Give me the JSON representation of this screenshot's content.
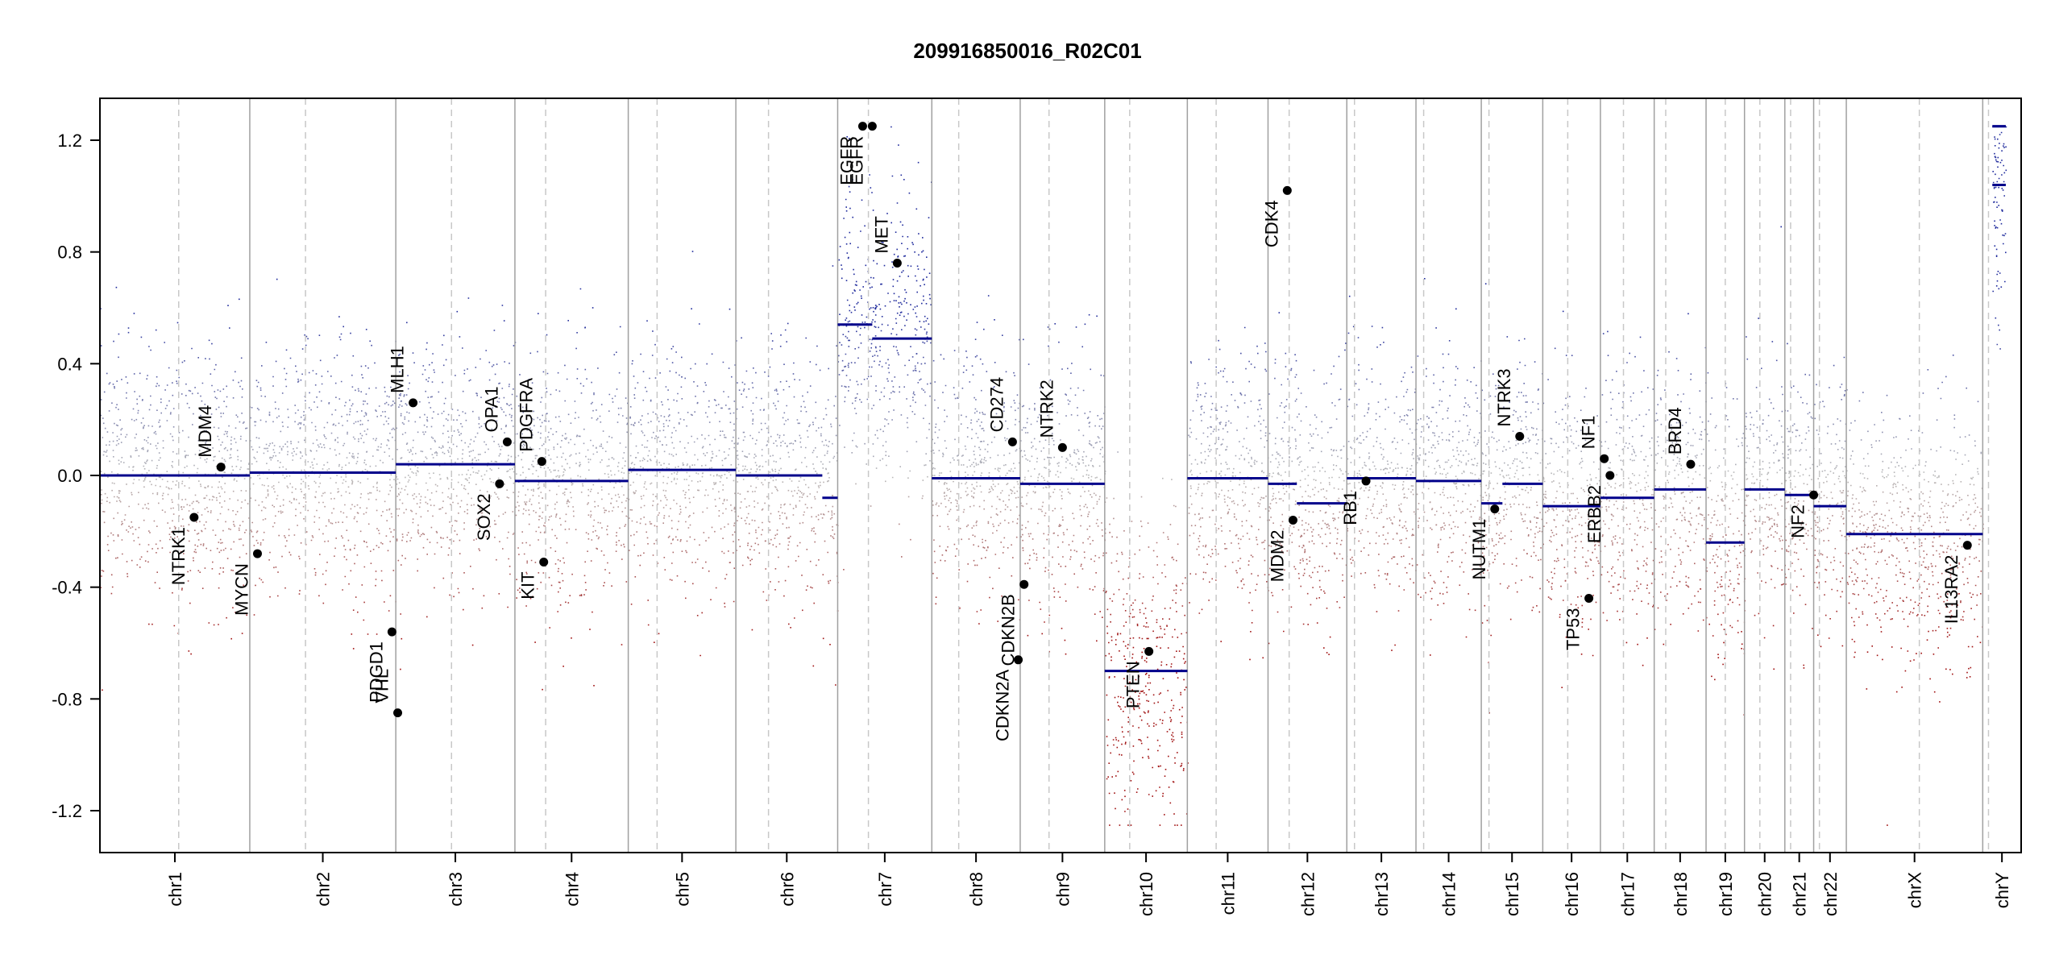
{
  "chart_data": {
    "type": "scatter",
    "title": "209916850016_R02C01",
    "xlabel": "",
    "ylabel": "",
    "ylim": [
      -1.35,
      1.35
    ],
    "yticks": [
      -1.2,
      -0.8,
      -0.4,
      0.0,
      0.4,
      0.8,
      1.2
    ],
    "ytick_labels": [
      "-1.2",
      "-0.8",
      "-0.4",
      "0.0",
      "0.4",
      "0.8",
      "1.2"
    ],
    "colors": {
      "gain": "#1f2a9c",
      "loss": "#a01010",
      "neutral": "#b9b9b9",
      "segment": "#00008b",
      "axis": "#000000",
      "boundary": "#a0a0a0",
      "centromere": "#c8c8c8"
    },
    "chromosomes": [
      {
        "name": "chr1",
        "start": 0.0,
        "end": 0.078,
        "centromere": 0.041
      },
      {
        "name": "chr2",
        "start": 0.078,
        "end": 0.154,
        "centromere": 0.107
      },
      {
        "name": "chr3",
        "start": 0.154,
        "end": 0.216,
        "centromere": 0.183
      },
      {
        "name": "chr4",
        "start": 0.216,
        "end": 0.275,
        "centromere": 0.232
      },
      {
        "name": "chr5",
        "start": 0.275,
        "end": 0.331,
        "centromere": 0.29
      },
      {
        "name": "chr6",
        "start": 0.331,
        "end": 0.384,
        "centromere": 0.348
      },
      {
        "name": "chr7",
        "start": 0.384,
        "end": 0.433,
        "centromere": 0.4
      },
      {
        "name": "chr8",
        "start": 0.433,
        "end": 0.479,
        "centromere": 0.447
      },
      {
        "name": "chr9",
        "start": 0.479,
        "end": 0.523,
        "centromere": 0.494
      },
      {
        "name": "chr10",
        "start": 0.523,
        "end": 0.566,
        "centromere": 0.536
      },
      {
        "name": "chr11",
        "start": 0.566,
        "end": 0.608,
        "centromere": 0.581
      },
      {
        "name": "chr12",
        "start": 0.608,
        "end": 0.649,
        "centromere": 0.619
      },
      {
        "name": "chr13",
        "start": 0.649,
        "end": 0.685,
        "centromere": 0.653
      },
      {
        "name": "chr14",
        "start": 0.685,
        "end": 0.719,
        "centromere": 0.689
      },
      {
        "name": "chr15",
        "start": 0.719,
        "end": 0.751,
        "centromere": 0.723
      },
      {
        "name": "chr16",
        "start": 0.751,
        "end": 0.781,
        "centromere": 0.764
      },
      {
        "name": "chr17",
        "start": 0.781,
        "end": 0.809,
        "centromere": 0.793
      },
      {
        "name": "chr18",
        "start": 0.809,
        "end": 0.836,
        "centromere": 0.815
      },
      {
        "name": "chr19",
        "start": 0.836,
        "end": 0.856,
        "centromere": 0.846
      },
      {
        "name": "chr20",
        "start": 0.856,
        "end": 0.877,
        "centromere": 0.864
      },
      {
        "name": "chr21",
        "start": 0.877,
        "end": 0.892,
        "centromere": 0.88
      },
      {
        "name": "chr22",
        "start": 0.892,
        "end": 0.909,
        "centromere": 0.895
      },
      {
        "name": "chrX",
        "start": 0.909,
        "end": 0.98,
        "centromere": 0.947
      },
      {
        "name": "chrY",
        "start": 0.98,
        "end": 1.0,
        "centromere": 0.983
      }
    ],
    "segments": [
      {
        "x0": 0.0,
        "x1": 0.078,
        "y": 0.0
      },
      {
        "x0": 0.078,
        "x1": 0.154,
        "y": 0.01
      },
      {
        "x0": 0.154,
        "x1": 0.216,
        "y": 0.04
      },
      {
        "x0": 0.216,
        "x1": 0.275,
        "y": -0.02
      },
      {
        "x0": 0.275,
        "x1": 0.331,
        "y": 0.02
      },
      {
        "x0": 0.331,
        "x1": 0.376,
        "y": 0.0
      },
      {
        "x0": 0.376,
        "x1": 0.384,
        "y": -0.08
      },
      {
        "x0": 0.384,
        "x1": 0.402,
        "y": 0.54
      },
      {
        "x0": 0.402,
        "x1": 0.433,
        "y": 0.49
      },
      {
        "x0": 0.433,
        "x1": 0.479,
        "y": -0.01
      },
      {
        "x0": 0.479,
        "x1": 0.523,
        "y": -0.03
      },
      {
        "x0": 0.523,
        "x1": 0.566,
        "y": -0.7
      },
      {
        "x0": 0.566,
        "x1": 0.608,
        "y": -0.01
      },
      {
        "x0": 0.608,
        "x1": 0.623,
        "y": -0.03
      },
      {
        "x0": 0.623,
        "x1": 0.649,
        "y": -0.1
      },
      {
        "x0": 0.649,
        "x1": 0.685,
        "y": -0.01
      },
      {
        "x0": 0.685,
        "x1": 0.719,
        "y": -0.02
      },
      {
        "x0": 0.719,
        "x1": 0.73,
        "y": -0.1
      },
      {
        "x0": 0.73,
        "x1": 0.751,
        "y": -0.03
      },
      {
        "x0": 0.751,
        "x1": 0.781,
        "y": -0.11
      },
      {
        "x0": 0.781,
        "x1": 0.809,
        "y": -0.08
      },
      {
        "x0": 0.809,
        "x1": 0.836,
        "y": -0.05
      },
      {
        "x0": 0.836,
        "x1": 0.856,
        "y": -0.24
      },
      {
        "x0": 0.856,
        "x1": 0.877,
        "y": -0.05
      },
      {
        "x0": 0.877,
        "x1": 0.892,
        "y": -0.07
      },
      {
        "x0": 0.892,
        "x1": 0.909,
        "y": -0.11
      },
      {
        "x0": 0.909,
        "x1": 0.98,
        "y": -0.21
      },
      {
        "x0": 0.985,
        "x1": 0.992,
        "y": 1.04
      },
      {
        "x0": 0.985,
        "x1": 0.992,
        "y": 1.25
      }
    ],
    "genes": [
      {
        "name": "NTRK1",
        "x": 0.049,
        "y": -0.15,
        "label_side": "below"
      },
      {
        "name": "MDM4",
        "x": 0.063,
        "y": 0.03,
        "label_side": "above"
      },
      {
        "name": "MYCN",
        "x": 0.082,
        "y": -0.28,
        "label_side": "below"
      },
      {
        "name": "PDGD1",
        "x": 0.152,
        "y": -0.56,
        "label_side": "below"
      },
      {
        "name": "VHL",
        "x": 0.155,
        "y": -0.85,
        "label_side": "above"
      },
      {
        "name": "MLH1",
        "x": 0.163,
        "y": 0.26,
        "label_side": "above"
      },
      {
        "name": "SOX2",
        "x": 0.208,
        "y": -0.03,
        "label_side": "below"
      },
      {
        "name": "OPA1",
        "x": 0.212,
        "y": 0.12,
        "label_side": "above"
      },
      {
        "name": "PDGFRA",
        "x": 0.23,
        "y": 0.05,
        "label_side": "above"
      },
      {
        "name": "KIT",
        "x": 0.231,
        "y": -0.31,
        "label_side": "below"
      },
      {
        "name": "EGFR",
        "x": 0.397,
        "y": 1.25,
        "label_side": "below"
      },
      {
        "name": "EGFR_1",
        "x": 0.402,
        "y": 1.25,
        "label_side": "below"
      },
      {
        "name": "MET",
        "x": 0.415,
        "y": 0.76,
        "label_side": "above"
      },
      {
        "name": "CD274",
        "x": 0.475,
        "y": 0.12,
        "label_side": "above"
      },
      {
        "name": "CDKN2B",
        "x": 0.481,
        "y": -0.39,
        "label_side": "below"
      },
      {
        "name": "CDKN2A",
        "x": 0.478,
        "y": -0.66,
        "label_side": "below"
      },
      {
        "name": "NTRK2",
        "x": 0.501,
        "y": 0.1,
        "label_side": "above"
      },
      {
        "name": "PTEN",
        "x": 0.546,
        "y": -0.63,
        "label_side": "below"
      },
      {
        "name": "CDK4",
        "x": 0.618,
        "y": 1.02,
        "label_side": "below"
      },
      {
        "name": "MDM2",
        "x": 0.621,
        "y": -0.16,
        "label_side": "below"
      },
      {
        "name": "RB1",
        "x": 0.659,
        "y": -0.02,
        "label_side": "below"
      },
      {
        "name": "NUTM1",
        "x": 0.726,
        "y": -0.12,
        "label_side": "below"
      },
      {
        "name": "NTRK3",
        "x": 0.739,
        "y": 0.14,
        "label_side": "above"
      },
      {
        "name": "TP53",
        "x": 0.775,
        "y": -0.44,
        "label_side": "below"
      },
      {
        "name": "NF1",
        "x": 0.783,
        "y": 0.06,
        "label_side": "above"
      },
      {
        "name": "ERBB2",
        "x": 0.786,
        "y": 0.0,
        "label_side": "below"
      },
      {
        "name": "BRD4",
        "x": 0.828,
        "y": 0.04,
        "label_side": "above"
      },
      {
        "name": "NF2",
        "x": 0.892,
        "y": -0.07,
        "label_side": "below"
      },
      {
        "name": "IL13RA2",
        "x": 0.972,
        "y": -0.25,
        "label_side": "below"
      }
    ],
    "gene_display_labels": {
      "EGFR_1": "EGFR"
    }
  }
}
